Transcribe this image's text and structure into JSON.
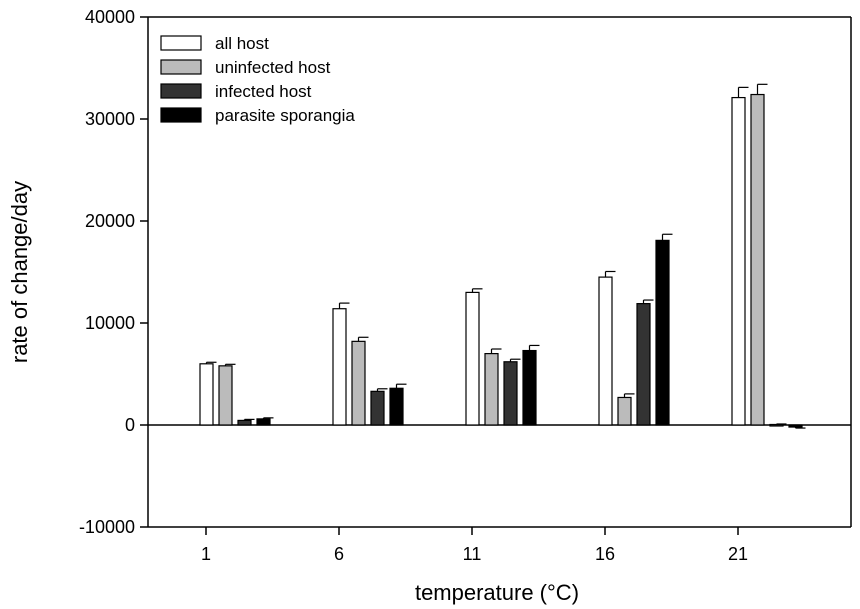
{
  "chart_data": {
    "type": "bar",
    "categories": [
      "1",
      "6",
      "11",
      "16",
      "21"
    ],
    "series": [
      {
        "name": "all host",
        "color": "#ffffff",
        "values": [
          6000,
          11400,
          13000,
          14500,
          32100
        ],
        "errors": [
          150,
          550,
          350,
          550,
          1000
        ]
      },
      {
        "name": "uninfected host",
        "color": "#bbbbbb",
        "values": [
          5800,
          8200,
          7000,
          2700,
          32400
        ],
        "errors": [
          150,
          400,
          450,
          350,
          1000
        ]
      },
      {
        "name": "infected host",
        "color": "#333333",
        "values": [
          450,
          3300,
          6200,
          11900,
          50
        ],
        "errors": [
          100,
          250,
          250,
          350,
          50
        ]
      },
      {
        "name": "parasite sporangia",
        "color": "#000000",
        "values": [
          600,
          3600,
          7300,
          18100,
          -200
        ],
        "errors": [
          100,
          400,
          500,
          600,
          100
        ]
      }
    ],
    "xlabel": "temperature (°C)",
    "ylabel": "rate of change/day",
    "ylim": [
      -10000,
      40000
    ],
    "yticks": [
      "-10000",
      "0",
      "10000",
      "20000",
      "30000",
      "40000"
    ],
    "grid": false,
    "legend": "top-left"
  }
}
